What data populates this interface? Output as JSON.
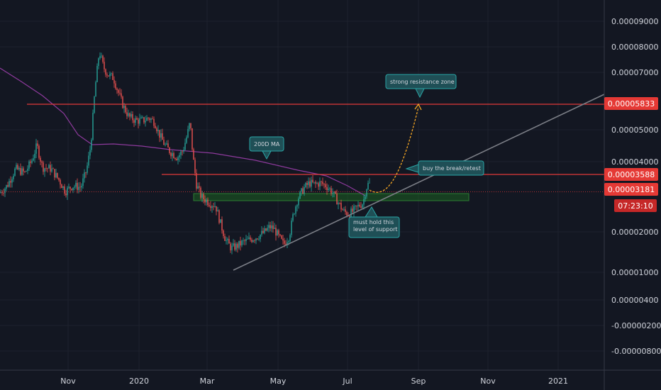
{
  "chart_data": {
    "type": "candlestick",
    "y_scale": "log",
    "grid": true,
    "colors": {
      "background": "#131722",
      "grid": "#1e222d",
      "axis_text": "#d1d4dc",
      "bull": "#26a69a",
      "bear": "#ef5350",
      "ma": "#8e3a9d",
      "resistance": "#e03a3a",
      "support_zone": "#1b5e20",
      "trendline": "#7b7e86",
      "projection": "#f5a623",
      "note_fill": "#1f4f56",
      "note_stroke": "#2aa6a6",
      "badge_red": "#e53935",
      "badge_timer": "#c62828"
    },
    "x_ticks": [
      "Nov",
      "2020",
      "Mar",
      "May",
      "Jul",
      "Sep",
      "Nov",
      "2021"
    ],
    "y_ticks": [
      "0.00009000",
      "0.00008000",
      "0.00007000",
      "0.00005000",
      "0.00004000",
      "0.00002000",
      "0.00001000",
      "0.00000400",
      "-0.00000200",
      "-0.00000800"
    ],
    "price_badges": [
      {
        "label": "0.00005833",
        "value": 5.833e-05,
        "style": "red"
      },
      {
        "label": "0.00003588",
        "value": 3.588e-05,
        "style": "red"
      },
      {
        "label": "0.00003181",
        "value": 3.181e-05,
        "style": "red"
      },
      {
        "label": "07:23:10",
        "style": "timer"
      }
    ],
    "resistance_levels": [
      5.833e-05,
      3.588e-05
    ],
    "current_price": 3.181e-05,
    "annotations": [
      {
        "id": "resistance",
        "lines": [
          "strong resistance zone"
        ]
      },
      {
        "id": "ma",
        "lines": [
          "200D MA"
        ]
      },
      {
        "id": "retest",
        "lines": [
          "buy the break/retest"
        ]
      },
      {
        "id": "support",
        "lines": [
          "must hold this",
          "level of support"
        ]
      }
    ]
  }
}
